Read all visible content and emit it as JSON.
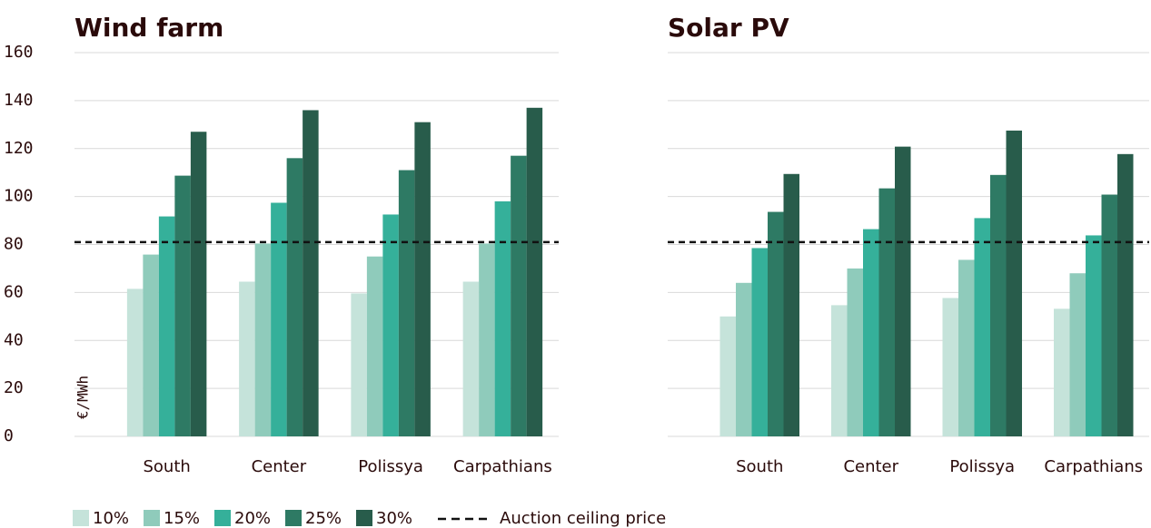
{
  "chart_data": [
    {
      "type": "bar",
      "title": "Wind farm",
      "y_label": "€/MWh",
      "categories": [
        "South",
        "Center",
        "Polissya",
        "Carpathians"
      ],
      "series": [
        {
          "name": "10%",
          "color": "#c5e3da",
          "values": [
            61.5,
            64.5,
            59.6,
            64.5
          ]
        },
        {
          "name": "15%",
          "color": "#8fcbbb",
          "values": [
            75.8,
            80.4,
            75,
            80.4
          ]
        },
        {
          "name": "20%",
          "color": "#35b09a",
          "values": [
            91.7,
            97.4,
            92.5,
            98
          ]
        },
        {
          "name": "25%",
          "color": "#2e7a64",
          "values": [
            108.7,
            116,
            111,
            117
          ]
        },
        {
          "name": "30%",
          "color": "#285c4b",
          "values": [
            127,
            136,
            131,
            137
          ]
        }
      ],
      "reference_line": {
        "value": 81,
        "label": "Auction ceiling price"
      },
      "ylim": [
        0,
        160
      ],
      "yticks": [
        0,
        20,
        40,
        60,
        80,
        100,
        120,
        140,
        160
      ],
      "grid": true
    },
    {
      "type": "bar",
      "title": "Solar PV",
      "categories": [
        "South",
        "Center",
        "Polissya",
        "Carpathians"
      ],
      "series": [
        {
          "color": "#c5e3da",
          "values": [
            50,
            54.7,
            57.7,
            53.2
          ]
        },
        {
          "color": "#8fcbbb",
          "values": [
            64,
            70,
            73.6,
            68
          ]
        },
        {
          "color": "#35b09a",
          "values": [
            78.5,
            86.4,
            91,
            83.8
          ]
        },
        {
          "color": "#2e7a64",
          "values": [
            93.6,
            103.4,
            109,
            100.8
          ]
        },
        {
          "color": "#285c4b",
          "values": [
            109.4,
            120.8,
            127.5,
            117.7
          ]
        }
      ],
      "reference_line": {
        "value": 81
      },
      "ylim": [
        0,
        160
      ],
      "yticks": [
        0,
        20,
        40,
        60,
        80,
        100,
        120,
        140,
        160
      ],
      "grid": true
    }
  ]
}
